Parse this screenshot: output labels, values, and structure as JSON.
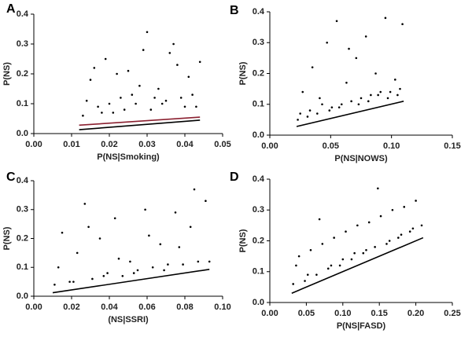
{
  "chart_data": [
    {
      "type": "scatter",
      "panel": "A",
      "xlabel": "P(NS|Smoking)",
      "ylabel": "P(NS)",
      "xlim": [
        0,
        0.05
      ],
      "ylim": [
        0,
        0.4
      ],
      "xticks": [
        {
          "value": 0,
          "label": "0.00"
        },
        {
          "value": 0.01,
          "label": "0.01"
        },
        {
          "value": 0.02,
          "label": "0.02"
        },
        {
          "value": 0.03,
          "label": "0.03"
        },
        {
          "value": 0.04,
          "label": "0.04"
        },
        {
          "value": 0.05,
          "label": "0.05"
        }
      ],
      "yticks": [
        {
          "value": 0,
          "label": "0.0"
        },
        {
          "value": 0.1,
          "label": "0.1"
        },
        {
          "value": 0.2,
          "label": "0.2"
        },
        {
          "value": 0.3,
          "label": "0.3"
        },
        {
          "value": 0.4,
          "label": "0.4"
        }
      ],
      "series": [
        {
          "color": "#000000",
          "x": [
            0.013,
            0.015,
            0.017,
            0.019,
            0.021,
            0.023,
            0.025,
            0.027,
            0.029,
            0.031,
            0.033,
            0.035,
            0.037,
            0.039,
            0.041,
            0.043,
            0.014,
            0.018,
            0.022,
            0.026,
            0.03,
            0.034,
            0.038,
            0.042,
            0.016,
            0.02,
            0.024,
            0.028,
            0.032,
            0.036,
            0.04,
            0.044
          ],
          "y": [
            0.06,
            0.18,
            0.09,
            0.25,
            0.07,
            0.12,
            0.21,
            0.1,
            0.28,
            0.08,
            0.15,
            0.11,
            0.3,
            0.12,
            0.19,
            0.09,
            0.11,
            0.07,
            0.2,
            0.13,
            0.34,
            0.1,
            0.23,
            0.13,
            0.22,
            0.1,
            0.08,
            0.16,
            0.12,
            0.27,
            0.09,
            0.24
          ]
        }
      ],
      "lines": [
        {
          "color": "#000000",
          "x": [
            0.012,
            0.044
          ],
          "y": [
            0.013,
            0.045
          ]
        },
        {
          "color": "#8b2030",
          "x": [
            0.012,
            0.044
          ],
          "y": [
            0.028,
            0.055
          ]
        }
      ]
    },
    {
      "type": "scatter",
      "panel": "B",
      "xlabel": "P(NS|NOWS)",
      "ylabel": "P(NS)",
      "xlim": [
        0,
        0.15
      ],
      "ylim": [
        0,
        0.4
      ],
      "xticks": [
        {
          "value": 0,
          "label": "0.00"
        },
        {
          "value": 0.05,
          "label": "0.05"
        },
        {
          "value": 0.1,
          "label": "0.10"
        },
        {
          "value": 0.15,
          "label": "0.15"
        }
      ],
      "yticks": [
        {
          "value": 0,
          "label": "0.0"
        },
        {
          "value": 0.1,
          "label": "0.1"
        },
        {
          "value": 0.2,
          "label": "0.2"
        },
        {
          "value": 0.3,
          "label": "0.3"
        },
        {
          "value": 0.4,
          "label": "0.4"
        }
      ],
      "series": [
        {
          "color": "#000000",
          "x": [
            0.023,
            0.027,
            0.031,
            0.035,
            0.039,
            0.043,
            0.047,
            0.051,
            0.055,
            0.059,
            0.063,
            0.067,
            0.071,
            0.075,
            0.079,
            0.083,
            0.087,
            0.091,
            0.095,
            0.099,
            0.103,
            0.107,
            0.025,
            0.033,
            0.041,
            0.049,
            0.057,
            0.065,
            0.073,
            0.081,
            0.089,
            0.097,
            0.105,
            0.109
          ],
          "y": [
            0.05,
            0.14,
            0.06,
            0.22,
            0.07,
            0.1,
            0.3,
            0.09,
            0.37,
            0.1,
            0.17,
            0.11,
            0.25,
            0.12,
            0.32,
            0.13,
            0.2,
            0.14,
            0.38,
            0.14,
            0.18,
            0.15,
            0.07,
            0.08,
            0.12,
            0.08,
            0.09,
            0.28,
            0.1,
            0.11,
            0.13,
            0.12,
            0.13,
            0.36
          ]
        }
      ],
      "lines": [
        {
          "color": "#000000",
          "x": [
            0.022,
            0.11
          ],
          "y": [
            0.028,
            0.11
          ]
        }
      ]
    },
    {
      "type": "scatter",
      "panel": "C",
      "xlabel": "(NS|SSRI)",
      "ylabel": "P(NS)",
      "xlim": [
        0,
        0.1
      ],
      "ylim": [
        0,
        0.4
      ],
      "xticks": [
        {
          "value": 0,
          "label": "0.00"
        },
        {
          "value": 0.02,
          "label": "0.02"
        },
        {
          "value": 0.04,
          "label": "0.04"
        },
        {
          "value": 0.06,
          "label": "0.06"
        },
        {
          "value": 0.08,
          "label": "0.08"
        },
        {
          "value": 0.1,
          "label": "0.10"
        }
      ],
      "yticks": [
        {
          "value": 0,
          "label": "0.0"
        },
        {
          "value": 0.1,
          "label": "0.1"
        },
        {
          "value": 0.2,
          "label": "0.2"
        },
        {
          "value": 0.3,
          "label": "0.3"
        },
        {
          "value": 0.4,
          "label": "0.4"
        }
      ],
      "series": [
        {
          "color": "#000000",
          "x": [
            0.011,
            0.015,
            0.019,
            0.023,
            0.027,
            0.031,
            0.035,
            0.039,
            0.043,
            0.047,
            0.051,
            0.055,
            0.059,
            0.063,
            0.067,
            0.071,
            0.075,
            0.079,
            0.083,
            0.087,
            0.091,
            0.013,
            0.021,
            0.029,
            0.037,
            0.045,
            0.053,
            0.061,
            0.069,
            0.077,
            0.085,
            0.093
          ],
          "y": [
            0.04,
            0.22,
            0.05,
            0.15,
            0.32,
            0.06,
            0.2,
            0.08,
            0.27,
            0.07,
            0.12,
            0.09,
            0.3,
            0.1,
            0.18,
            0.11,
            0.29,
            0.11,
            0.24,
            0.12,
            0.33,
            0.1,
            0.05,
            0.24,
            0.07,
            0.13,
            0.08,
            0.21,
            0.09,
            0.17,
            0.37,
            0.12
          ]
        }
      ],
      "lines": [
        {
          "color": "#000000",
          "x": [
            0.01,
            0.093
          ],
          "y": [
            0.012,
            0.093
          ]
        }
      ]
    },
    {
      "type": "scatter",
      "panel": "D",
      "xlabel": "P(NS|FASD)",
      "ylabel": "P(NS)",
      "xlim": [
        0,
        0.25
      ],
      "ylim": [
        0,
        0.4
      ],
      "xticks": [
        {
          "value": 0,
          "label": "0.00"
        },
        {
          "value": 0.05,
          "label": "0.05"
        },
        {
          "value": 0.1,
          "label": "0.10"
        },
        {
          "value": 0.15,
          "label": "0.15"
        },
        {
          "value": 0.2,
          "label": "0.20"
        },
        {
          "value": 0.25,
          "label": "0.25"
        }
      ],
      "yticks": [
        {
          "value": 0,
          "label": "0.0"
        },
        {
          "value": 0.1,
          "label": "0.1"
        },
        {
          "value": 0.2,
          "label": "0.2"
        },
        {
          "value": 0.3,
          "label": "0.3"
        },
        {
          "value": 0.4,
          "label": "0.4"
        }
      ],
      "series": [
        {
          "color": "#000000",
          "x": [
            0.032,
            0.04,
            0.048,
            0.056,
            0.064,
            0.072,
            0.08,
            0.088,
            0.096,
            0.104,
            0.112,
            0.12,
            0.128,
            0.136,
            0.144,
            0.152,
            0.16,
            0.168,
            0.176,
            0.184,
            0.192,
            0.2,
            0.208,
            0.036,
            0.052,
            0.068,
            0.084,
            0.1,
            0.116,
            0.132,
            0.148,
            0.164,
            0.18,
            0.196
          ],
          "y": [
            0.06,
            0.15,
            0.07,
            0.17,
            0.09,
            0.19,
            0.11,
            0.21,
            0.12,
            0.23,
            0.14,
            0.25,
            0.16,
            0.26,
            0.18,
            0.28,
            0.19,
            0.3,
            0.21,
            0.31,
            0.23,
            0.33,
            0.25,
            0.12,
            0.09,
            0.27,
            0.12,
            0.14,
            0.16,
            0.17,
            0.37,
            0.2,
            0.22,
            0.24
          ]
        }
      ],
      "lines": [
        {
          "color": "#000000",
          "x": [
            0.03,
            0.21
          ],
          "y": [
            0.03,
            0.21
          ]
        }
      ]
    }
  ]
}
